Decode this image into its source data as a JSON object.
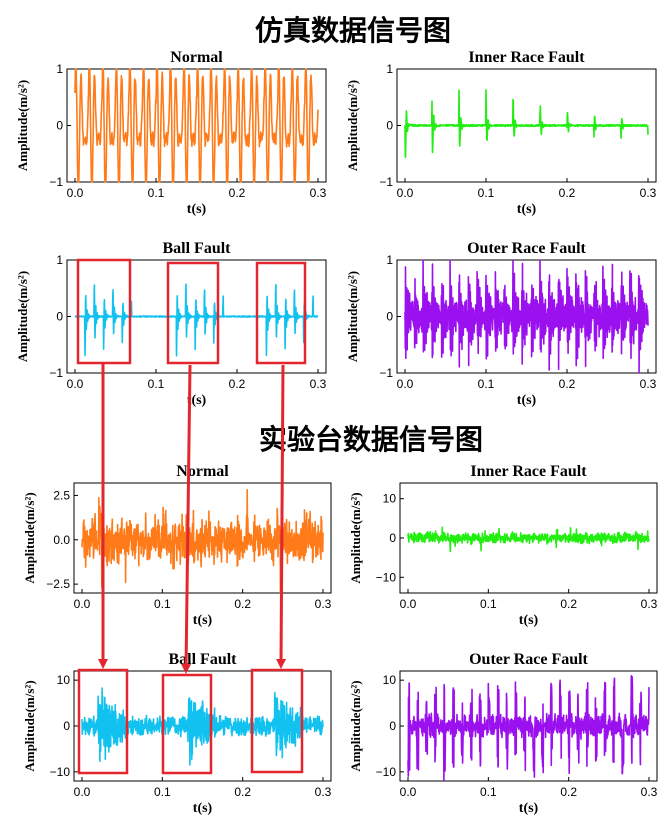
{
  "headings": {
    "sim": "仿真数据信号图",
    "bench": "实验台数据信号图"
  },
  "colors": {
    "orange": "#ff7a18",
    "green": "#22ee11",
    "cyan": "#11c2f0",
    "purple": "#9b10ee",
    "red": "#e3262d"
  },
  "chart_data": [
    {
      "type": "line",
      "group": "sim",
      "title": "Normal",
      "color": "orange",
      "pattern": "normal",
      "xlabel": "t(s)",
      "ylabel": "Amplitude(m/s²)",
      "xlim": [
        0,
        0.3
      ],
      "ylim": [
        -1,
        1
      ],
      "xticks": [
        0.0,
        0.1,
        0.2,
        0.3
      ],
      "xtick_labels": [
        "0.0",
        "0.1",
        "0.2",
        "0.3"
      ],
      "yticks": [
        -1,
        0,
        1
      ],
      "ytick_labels": [
        "−1",
        "0",
        "1"
      ]
    },
    {
      "type": "line",
      "group": "sim",
      "title": "Inner Race Fault",
      "color": "green",
      "pattern": "inner",
      "xlabel": "t(s)",
      "ylabel": "Amplitude(m/s²)",
      "xlim": [
        0,
        0.3
      ],
      "ylim": [
        -1,
        1
      ],
      "xticks": [
        0.0,
        0.1,
        0.2,
        0.3
      ],
      "xtick_labels": [
        "0.0",
        "0.1",
        "0.2",
        "0.3"
      ],
      "yticks": [
        -1,
        0,
        1
      ],
      "ytick_labels": [
        "−1",
        "0",
        "1"
      ]
    },
    {
      "type": "line",
      "group": "sim",
      "title": "Ball Fault",
      "color": "cyan",
      "pattern": "ball",
      "xlabel": "t(s)",
      "ylabel": "Amplitude(m/s²)",
      "xlim": [
        0,
        0.3
      ],
      "ylim": [
        -1,
        1
      ],
      "xticks": [
        0.0,
        0.1,
        0.2,
        0.3
      ],
      "xtick_labels": [
        "0.0",
        "0.1",
        "0.2",
        "0.3"
      ],
      "yticks": [
        -1,
        0,
        1
      ],
      "ytick_labels": [
        "−1",
        "0",
        "1"
      ]
    },
    {
      "type": "line",
      "group": "sim",
      "title": "Outer Race Fault",
      "color": "purple",
      "pattern": "outer",
      "xlabel": "t(s)",
      "ylabel": "Amplitude(m/s²)",
      "xlim": [
        0,
        0.3
      ],
      "ylim": [
        -1,
        1
      ],
      "xticks": [
        0.0,
        0.1,
        0.2,
        0.3
      ],
      "xtick_labels": [
        "0.0",
        "0.1",
        "0.2",
        "0.3"
      ],
      "yticks": [
        -1,
        0,
        1
      ],
      "ytick_labels": [
        "−1",
        "0",
        "1"
      ]
    },
    {
      "type": "line",
      "group": "bench",
      "title": "Normal",
      "color": "orange",
      "pattern": "noise",
      "xlabel": "t(s)",
      "ylabel": "Amplitude(m/s²)",
      "xlim": [
        0,
        0.3
      ],
      "ylim": [
        -3,
        3.2
      ],
      "xticks": [
        0.0,
        0.1,
        0.2,
        0.3
      ],
      "xtick_labels": [
        "0.0",
        "0.1",
        "0.2",
        "0.3"
      ],
      "yticks": [
        -2.5,
        0,
        2.5
      ],
      "ytick_labels": [
        "−2.5",
        "0.0",
        "2.5"
      ]
    },
    {
      "type": "line",
      "group": "bench",
      "title": "Inner Race Fault",
      "color": "green",
      "pattern": "noise",
      "xlabel": "t(s)",
      "ylabel": "Amplitude(m/s²)",
      "xlim": [
        0,
        0.3
      ],
      "ylim": [
        -14,
        14
      ],
      "xticks": [
        0.0,
        0.1,
        0.2,
        0.3
      ],
      "xtick_labels": [
        "0.0",
        "0.1",
        "0.2",
        "0.3"
      ],
      "yticks": [
        -10,
        0,
        10
      ],
      "ytick_labels": [
        "−10",
        "0",
        "10"
      ]
    },
    {
      "type": "line",
      "group": "bench",
      "title": "Ball Fault",
      "color": "cyan",
      "pattern": "ballbench",
      "xlabel": "t(s)",
      "ylabel": "Amplitude(m/s²)",
      "xlim": [
        0,
        0.3
      ],
      "ylim": [
        -12,
        12
      ],
      "xticks": [
        0.0,
        0.1,
        0.2,
        0.3
      ],
      "xtick_labels": [
        "0.0",
        "0.1",
        "0.2",
        "0.3"
      ],
      "yticks": [
        -10,
        0,
        10
      ],
      "ytick_labels": [
        "−10",
        "0",
        "10"
      ]
    },
    {
      "type": "line",
      "group": "bench",
      "title": "Outer Race Fault",
      "color": "purple",
      "pattern": "outerbench",
      "xlabel": "t(s)",
      "ylabel": "Amplitude(m/s²)",
      "xlim": [
        0,
        0.3
      ],
      "ylim": [
        -12,
        12
      ],
      "xticks": [
        0.0,
        0.1,
        0.2,
        0.3
      ],
      "xtick_labels": [
        "0.0",
        "0.1",
        "0.2",
        "0.3"
      ],
      "yticks": [
        -10,
        0,
        10
      ],
      "ytick_labels": [
        "−10",
        "0",
        "10"
      ]
    }
  ]
}
